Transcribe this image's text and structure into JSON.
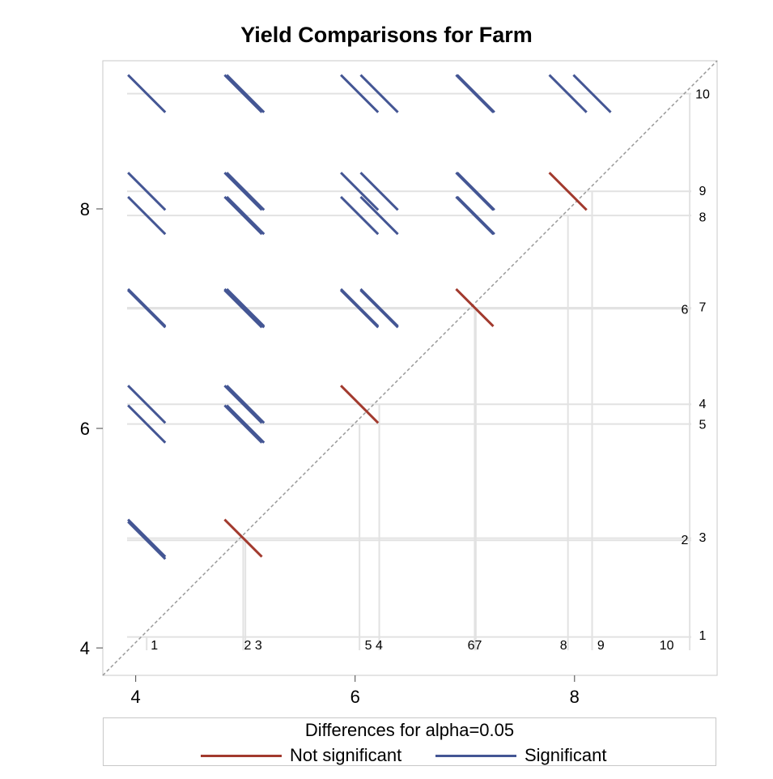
{
  "chart_data": {
    "type": "diffogram",
    "title": "Yield Comparisons for Farm",
    "xlabel": "",
    "ylabel": "",
    "xlim": [
      3.7,
      9.3
    ],
    "ylim": [
      3.75,
      9.35
    ],
    "xticks": [
      4,
      6,
      8
    ],
    "yticks": [
      4,
      6,
      8
    ],
    "levels": [
      {
        "label": "1",
        "mean": 4.1
      },
      {
        "label": "2",
        "mean": 4.98
      },
      {
        "label": "3",
        "mean": 5.0
      },
      {
        "label": "4",
        "mean": 6.22
      },
      {
        "label": "5",
        "mean": 6.04
      },
      {
        "label": "6",
        "mean": 7.09
      },
      {
        "label": "7",
        "mean": 7.1
      },
      {
        "label": "8",
        "mean": 7.94
      },
      {
        "label": "9",
        "mean": 8.16
      },
      {
        "label": "10",
        "mean": 9.05
      }
    ],
    "bottom_labels": [
      {
        "text": "1",
        "x": 4.17
      },
      {
        "text": "2 3",
        "x": 5.07
      },
      {
        "text": "5 4",
        "x": 6.17
      },
      {
        "text": "67",
        "x": 7.09
      },
      {
        "text": "8",
        "x": 7.9
      },
      {
        "text": "9",
        "x": 8.24
      },
      {
        "text": "10",
        "x": 8.84
      }
    ],
    "right_labels": [
      {
        "text": "1",
        "y": 4.12
      },
      {
        "text": "2",
        "y": 4.99,
        "offset": -1
      },
      {
        "text": "3",
        "y": 5.01
      },
      {
        "text": "4",
        "y": 6.23
      },
      {
        "text": "5",
        "y": 6.04
      },
      {
        "text": "6",
        "y": 7.09,
        "offset": -1
      },
      {
        "text": "7",
        "y": 7.11
      },
      {
        "text": "8",
        "y": 7.93
      },
      {
        "text": "9",
        "y": 8.17
      },
      {
        "text": "10",
        "y": 9.05
      }
    ],
    "comparisons": [
      {
        "a": "2",
        "b": "1",
        "significant": true
      },
      {
        "a": "3",
        "b": "1",
        "significant": true
      },
      {
        "a": "4",
        "b": "1",
        "significant": true
      },
      {
        "a": "5",
        "b": "1",
        "significant": true
      },
      {
        "a": "6",
        "b": "1",
        "significant": true
      },
      {
        "a": "7",
        "b": "1",
        "significant": true
      },
      {
        "a": "8",
        "b": "1",
        "significant": true
      },
      {
        "a": "9",
        "b": "1",
        "significant": true
      },
      {
        "a": "10",
        "b": "1",
        "significant": true
      },
      {
        "a": "3",
        "b": "2",
        "significant": false
      },
      {
        "a": "4",
        "b": "2",
        "significant": true
      },
      {
        "a": "5",
        "b": "2",
        "significant": true
      },
      {
        "a": "6",
        "b": "2",
        "significant": true
      },
      {
        "a": "7",
        "b": "2",
        "significant": true
      },
      {
        "a": "8",
        "b": "2",
        "significant": true
      },
      {
        "a": "9",
        "b": "2",
        "significant": true
      },
      {
        "a": "10",
        "b": "2",
        "significant": true
      },
      {
        "a": "4",
        "b": "3",
        "significant": true
      },
      {
        "a": "5",
        "b": "3",
        "significant": true
      },
      {
        "a": "6",
        "b": "3",
        "significant": true
      },
      {
        "a": "7",
        "b": "3",
        "significant": true
      },
      {
        "a": "8",
        "b": "3",
        "significant": true
      },
      {
        "a": "9",
        "b": "3",
        "significant": true
      },
      {
        "a": "10",
        "b": "3",
        "significant": true
      },
      {
        "a": "4",
        "b": "5",
        "significant": false
      },
      {
        "a": "6",
        "b": "4",
        "significant": true
      },
      {
        "a": "7",
        "b": "4",
        "significant": true
      },
      {
        "a": "8",
        "b": "4",
        "significant": true
      },
      {
        "a": "9",
        "b": "4",
        "significant": true
      },
      {
        "a": "10",
        "b": "4",
        "significant": true
      },
      {
        "a": "6",
        "b": "5",
        "significant": true
      },
      {
        "a": "7",
        "b": "5",
        "significant": true
      },
      {
        "a": "8",
        "b": "5",
        "significant": true
      },
      {
        "a": "9",
        "b": "5",
        "significant": true
      },
      {
        "a": "10",
        "b": "5",
        "significant": true
      },
      {
        "a": "7",
        "b": "6",
        "significant": false
      },
      {
        "a": "8",
        "b": "6",
        "significant": true
      },
      {
        "a": "9",
        "b": "6",
        "significant": true
      },
      {
        "a": "10",
        "b": "6",
        "significant": true
      },
      {
        "a": "8",
        "b": "7",
        "significant": true
      },
      {
        "a": "9",
        "b": "7",
        "significant": true
      },
      {
        "a": "10",
        "b": "7",
        "significant": true
      },
      {
        "a": "9",
        "b": "8",
        "significant": false
      },
      {
        "a": "10",
        "b": "8",
        "significant": true
      },
      {
        "a": "10",
        "b": "9",
        "significant": true
      }
    ],
    "half_length": 0.17,
    "colors": {
      "significant": "#445694",
      "not_significant": "#A23A2E",
      "reference": "#9a9a9a",
      "grid": "#e2e2e2"
    },
    "legend": {
      "title": "Differences for alpha=0.05",
      "items": [
        {
          "label": "Not significant",
          "color": "#A23A2E"
        },
        {
          "label": "Significant",
          "color": "#445694"
        }
      ]
    }
  }
}
